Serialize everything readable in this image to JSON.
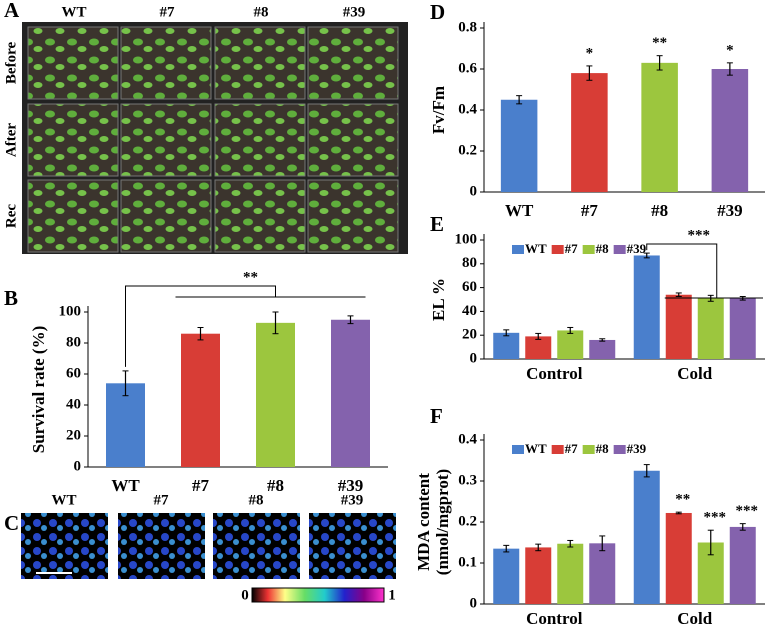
{
  "panels": {
    "A": {
      "label": "A",
      "columns": [
        "WT",
        "#7",
        "#8",
        "#39"
      ],
      "rows": [
        "Before",
        "After",
        "Rec"
      ]
    },
    "C": {
      "label": "C",
      "columns": [
        "WT",
        "#7",
        "#8",
        "#39"
      ],
      "colorbar_ticks": [
        0,
        1
      ]
    }
  },
  "chart_data": [
    {
      "type": "bar",
      "panel": "B",
      "y_label": "Survival rate (%)",
      "categories": [
        "WT",
        "#7",
        "#8",
        "#39"
      ],
      "values": [
        54,
        86,
        93,
        95
      ],
      "error": [
        8,
        4,
        7,
        2.5
      ],
      "colors": [
        "#4a7fcc",
        "#d83d36",
        "#9cc63e",
        "#8462ad"
      ],
      "ylim": [
        0,
        100
      ],
      "yticks": [
        0,
        20,
        40,
        60,
        80,
        100
      ],
      "annotation": "**"
    },
    {
      "type": "bar",
      "panel": "D",
      "y_label": "Fv/Fm",
      "categories": [
        "WT",
        "#7",
        "#8",
        "#39"
      ],
      "values": [
        0.45,
        0.58,
        0.63,
        0.6
      ],
      "error": [
        0.02,
        0.035,
        0.035,
        0.03
      ],
      "colors": [
        "#4a7fcc",
        "#d83d36",
        "#9cc63e",
        "#8462ad"
      ],
      "annotations": [
        null,
        "*",
        "**",
        "*"
      ],
      "ylim": [
        0,
        0.8
      ],
      "yticks": [
        0,
        0.2,
        0.4,
        0.6,
        0.8
      ]
    },
    {
      "type": "grouped_bar",
      "panel": "E",
      "y_label": "EL %",
      "categories": [
        "Control",
        "Cold"
      ],
      "series": [
        {
          "name": "WT",
          "color": "#4a7fcc",
          "values": [
            22,
            87
          ],
          "error": [
            2.5,
            2
          ]
        },
        {
          "name": "#7",
          "color": "#d83d36",
          "values": [
            19,
            54
          ],
          "error": [
            2.5,
            1.5
          ]
        },
        {
          "name": "#8",
          "color": "#9cc63e",
          "values": [
            24,
            51
          ],
          "error": [
            2.5,
            2.5
          ]
        },
        {
          "name": "#39",
          "color": "#8462ad",
          "values": [
            16,
            51
          ],
          "error": [
            1,
            1.5
          ]
        }
      ],
      "ylim": [
        0,
        100
      ],
      "yticks": [
        0,
        20,
        40,
        60,
        80,
        100
      ],
      "annotation": "***"
    },
    {
      "type": "grouped_bar",
      "panel": "F",
      "y_label": [
        "MDA content",
        "(nmol/mgprot)"
      ],
      "categories": [
        "Control",
        "Cold"
      ],
      "series": [
        {
          "name": "WT",
          "color": "#4a7fcc",
          "values": [
            0.135,
            0.325
          ],
          "error": [
            0.008,
            0.015
          ],
          "labels": [
            null,
            null
          ]
        },
        {
          "name": "#7",
          "color": "#d83d36",
          "values": [
            0.138,
            0.222
          ],
          "error": [
            0.008,
            0.002
          ],
          "labels": [
            null,
            "**"
          ]
        },
        {
          "name": "#8",
          "color": "#9cc63e",
          "values": [
            0.147,
            0.15
          ],
          "error": [
            0.008,
            0.03
          ],
          "labels": [
            null,
            "***"
          ]
        },
        {
          "name": "#39",
          "color": "#8462ad",
          "values": [
            0.148,
            0.188
          ],
          "error": [
            0.018,
            0.008
          ],
          "labels": [
            null,
            "***"
          ]
        }
      ],
      "ylim": [
        0,
        0.4
      ],
      "yticks": [
        0,
        0.1,
        0.2,
        0.3,
        0.4
      ]
    }
  ]
}
